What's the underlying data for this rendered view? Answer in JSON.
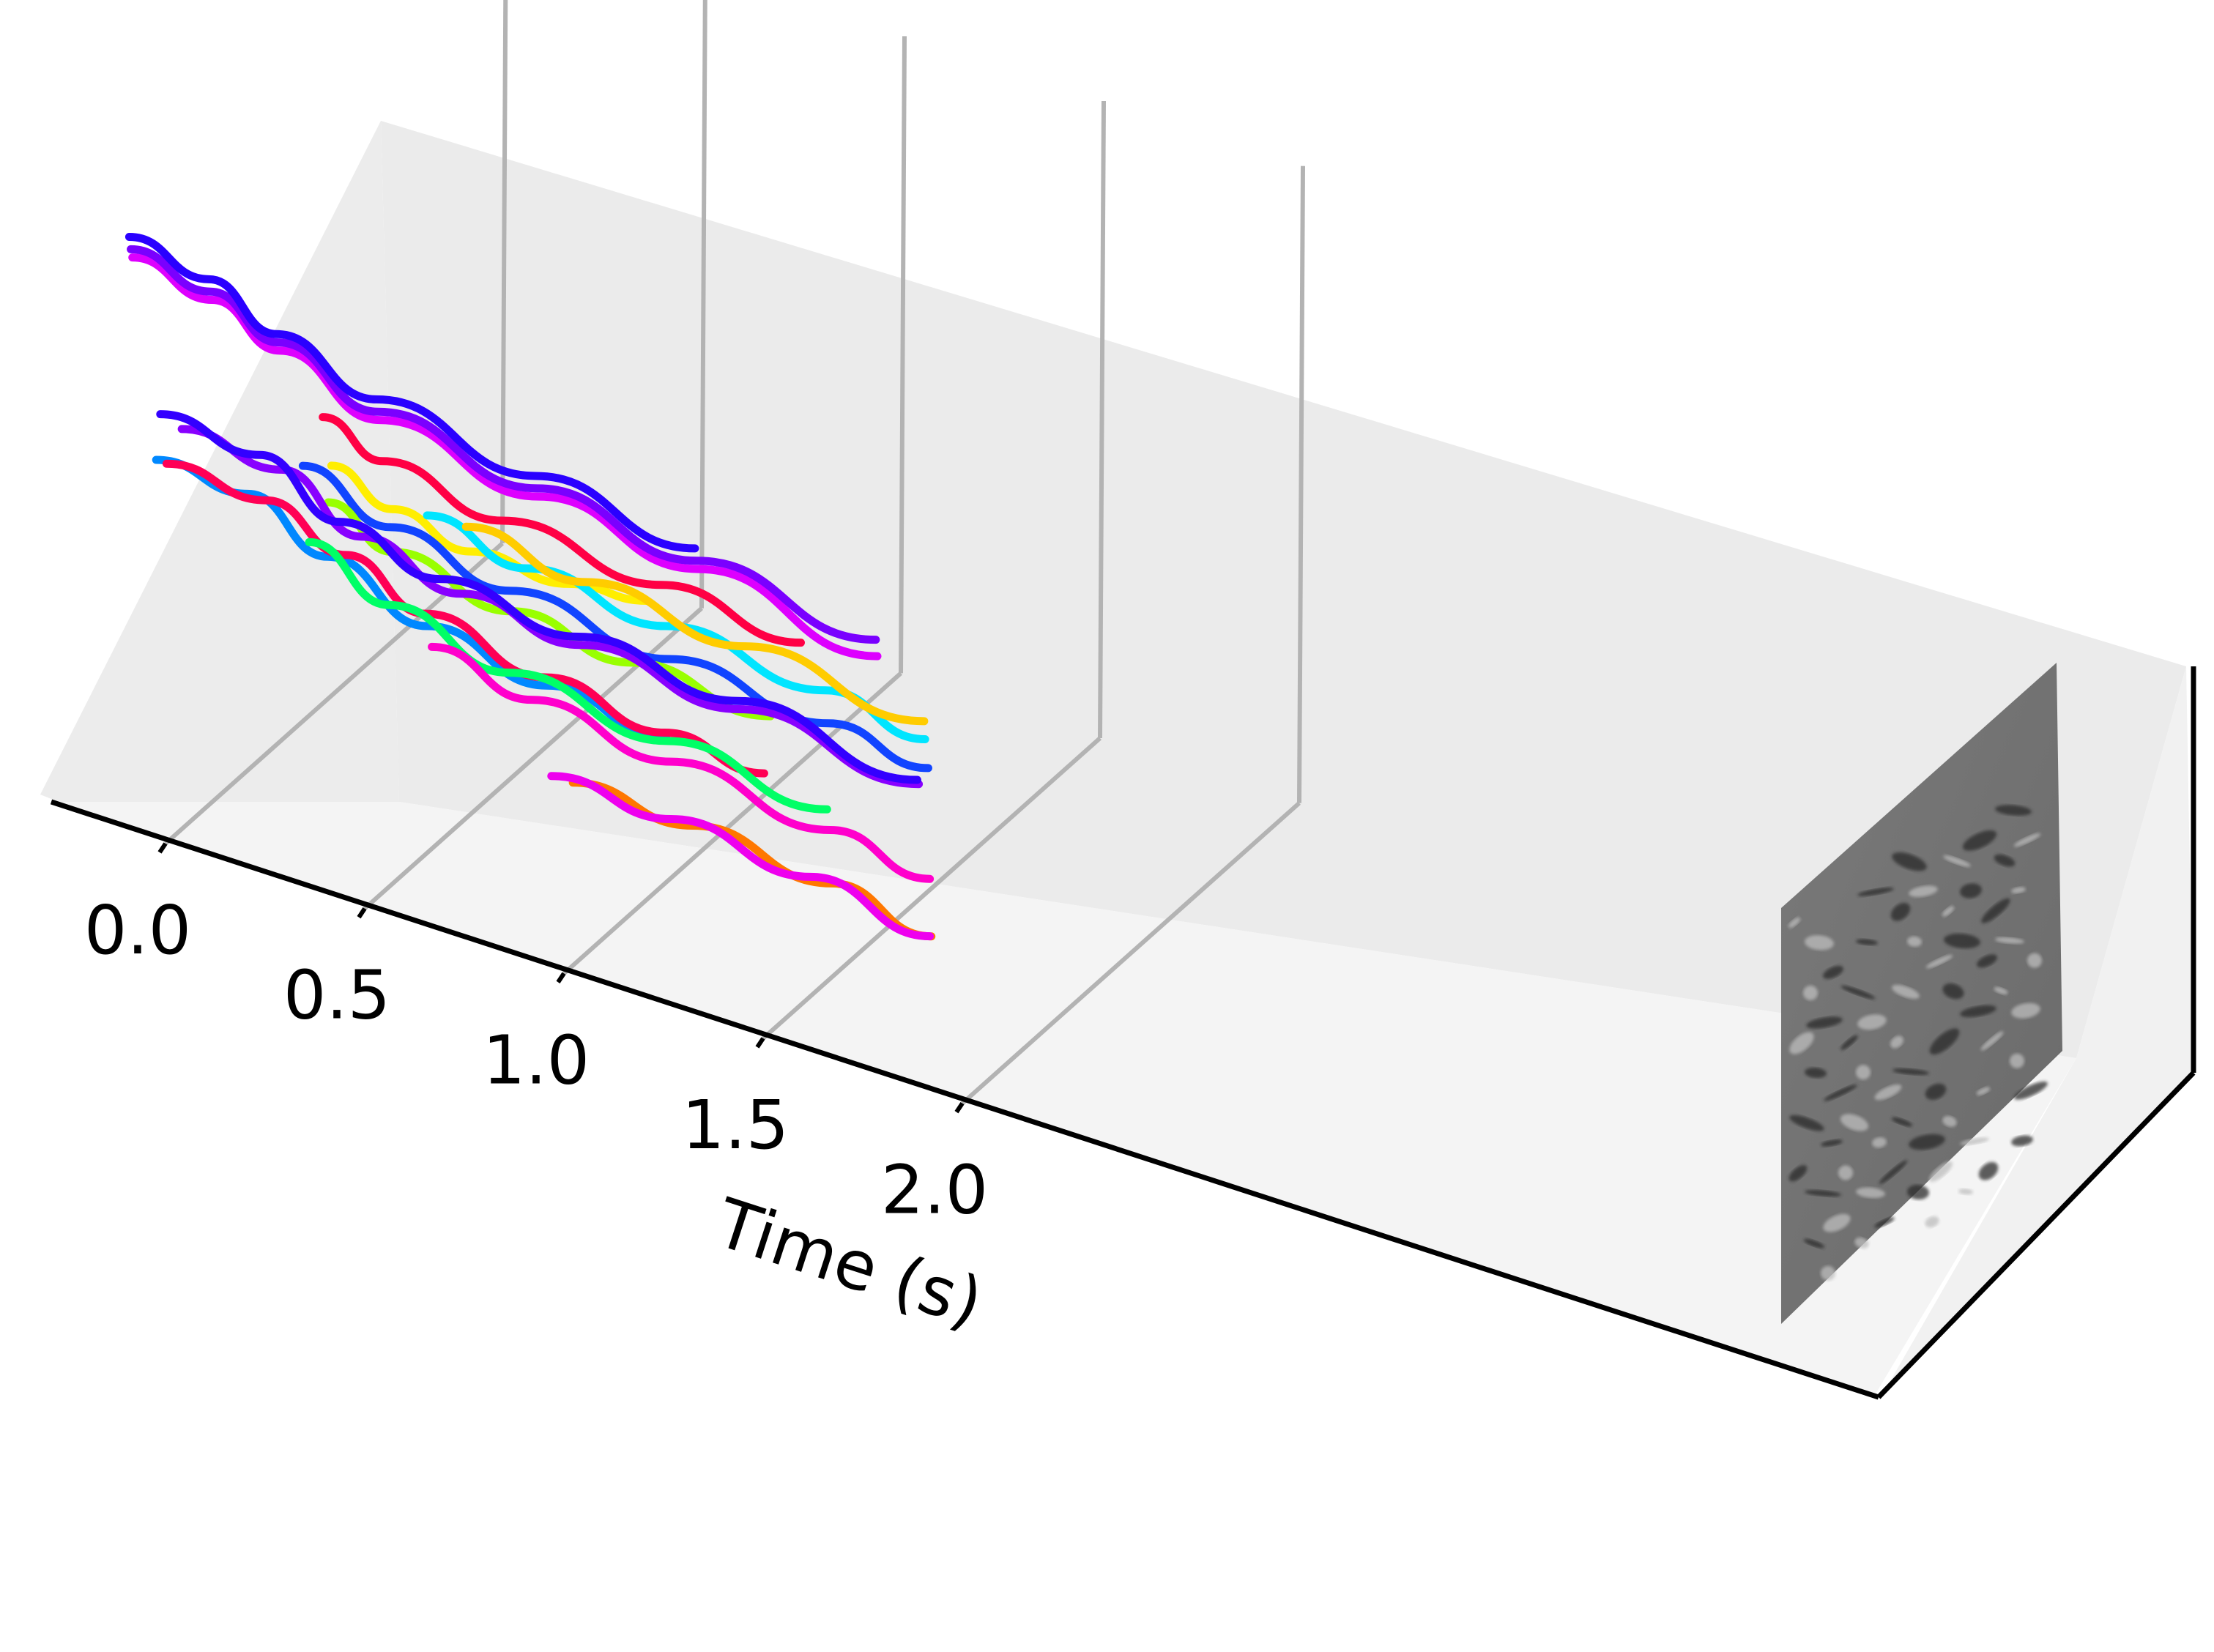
{
  "chart_data": {
    "type": "line",
    "projection": "3d",
    "xlabel": "Time (s)",
    "ylabel": "",
    "zlabel": "",
    "xlim": [
      -0.15,
      2.0
    ],
    "x_ticks": [
      0.0,
      0.5,
      1.0,
      1.5,
      2.0
    ],
    "x_tick_labels": [
      "0.0",
      "0.5",
      "1.0",
      "1.5",
      "2.0"
    ],
    "grid": true,
    "legend": "none",
    "end_frame": "grayscale event frame at t = 2.0",
    "series": [
      {
        "color": "#ffee00",
        "points": [
          [
            0.44,
            0.3,
            0.82
          ],
          [
            0.6,
            0.38,
            0.7
          ],
          [
            0.8,
            0.43,
            0.62
          ],
          [
            1.05,
            0.48,
            0.58
          ],
          [
            1.25,
            0.52,
            0.57
          ]
        ]
      },
      {
        "color": "#dd00ff",
        "points": [
          [
            -0.02,
            0.8,
            0.78
          ],
          [
            0.18,
            0.8,
            0.74
          ],
          [
            0.35,
            0.8,
            0.67
          ],
          [
            0.6,
            0.8,
            0.58
          ],
          [
            1.0,
            0.8,
            0.52
          ],
          [
            1.4,
            0.8,
            0.47
          ],
          [
            1.85,
            0.8,
            0.4
          ]
        ]
      },
      {
        "color": "#7a00ff",
        "points": [
          [
            -0.02,
            0.85,
            0.76
          ],
          [
            0.18,
            0.85,
            0.72
          ],
          [
            0.35,
            0.85,
            0.65
          ],
          [
            0.6,
            0.85,
            0.56
          ],
          [
            1.0,
            0.85,
            0.5
          ],
          [
            1.4,
            0.85,
            0.45
          ],
          [
            1.85,
            0.85,
            0.4
          ]
        ]
      },
      {
        "color": "#2a00ff",
        "points": [
          [
            -0.02,
            0.9,
            0.75
          ],
          [
            0.18,
            0.9,
            0.71
          ],
          [
            0.35,
            0.9,
            0.63
          ],
          [
            0.6,
            0.9,
            0.55
          ],
          [
            1.0,
            0.9,
            0.49
          ],
          [
            1.4,
            0.9,
            0.44
          ]
        ]
      },
      {
        "color": "#1144ff",
        "points": [
          [
            0.38,
            0.45,
            0.68
          ],
          [
            0.6,
            0.45,
            0.6
          ],
          [
            0.9,
            0.45,
            0.54
          ],
          [
            1.3,
            0.45,
            0.5
          ],
          [
            1.7,
            0.45,
            0.47
          ],
          [
            1.95,
            0.45,
            0.44
          ]
        ]
      },
      {
        "color": "#99ff00",
        "points": [
          [
            0.44,
            0.4,
            0.65
          ],
          [
            0.6,
            0.4,
            0.58
          ],
          [
            0.9,
            0.4,
            0.53
          ],
          [
            1.2,
            0.4,
            0.5
          ],
          [
            1.55,
            0.4,
            0.48
          ]
        ]
      },
      {
        "color": "#ff0044",
        "points": [
          [
            0.45,
            0.7,
            0.62
          ],
          [
            0.6,
            0.7,
            0.56
          ],
          [
            0.9,
            0.7,
            0.51
          ],
          [
            1.3,
            0.7,
            0.48
          ],
          [
            1.65,
            0.7,
            0.45
          ]
        ]
      },
      {
        "color": "#00e5ff",
        "points": [
          [
            0.7,
            0.55,
            0.58
          ],
          [
            0.95,
            0.55,
            0.53
          ],
          [
            1.3,
            0.55,
            0.5
          ],
          [
            1.7,
            0.55,
            0.47
          ],
          [
            1.95,
            0.55,
            0.43
          ]
        ]
      },
      {
        "color": "#ffcc00",
        "points": [
          [
            0.8,
            0.58,
            0.56
          ],
          [
            1.1,
            0.58,
            0.52
          ],
          [
            1.5,
            0.58,
            0.49
          ],
          [
            1.95,
            0.58,
            0.45
          ]
        ]
      },
      {
        "color": "#0088ff",
        "points": [
          [
            0.02,
            0.55,
            0.5
          ],
          [
            0.25,
            0.55,
            0.49
          ],
          [
            0.45,
            0.55,
            0.4
          ],
          [
            0.7,
            0.55,
            0.31
          ],
          [
            1.0,
            0.55,
            0.26
          ],
          [
            1.3,
            0.55,
            0.23
          ]
        ]
      },
      {
        "color": "#ff0055",
        "points": [
          [
            0.05,
            0.6,
            0.46
          ],
          [
            0.3,
            0.6,
            0.45
          ],
          [
            0.5,
            0.6,
            0.38
          ],
          [
            0.7,
            0.6,
            0.3
          ],
          [
            1.0,
            0.6,
            0.24
          ],
          [
            1.3,
            0.6,
            0.2
          ],
          [
            1.55,
            0.6,
            0.18
          ]
        ]
      },
      {
        "color": "#8800ff",
        "points": [
          [
            0.1,
            0.75,
            0.44
          ],
          [
            0.35,
            0.75,
            0.42
          ],
          [
            0.55,
            0.75,
            0.32
          ],
          [
            0.8,
            0.75,
            0.26
          ],
          [
            1.1,
            0.75,
            0.23
          ],
          [
            1.5,
            0.75,
            0.2
          ],
          [
            1.95,
            0.75,
            0.16
          ]
        ]
      },
      {
        "color": "#3300ff",
        "points": [
          [
            0.05,
            0.8,
            0.42
          ],
          [
            0.3,
            0.8,
            0.4
          ],
          [
            0.5,
            0.8,
            0.3
          ],
          [
            0.75,
            0.8,
            0.24
          ],
          [
            1.1,
            0.8,
            0.21
          ],
          [
            1.5,
            0.8,
            0.18
          ],
          [
            1.95,
            0.8,
            0.13
          ]
        ]
      },
      {
        "color": "#00ff66",
        "points": [
          [
            0.4,
            0.5,
            0.46
          ],
          [
            0.6,
            0.5,
            0.37
          ],
          [
            0.9,
            0.5,
            0.3
          ],
          [
            1.3,
            0.5,
            0.26
          ],
          [
            1.7,
            0.5,
            0.22
          ]
        ]
      },
      {
        "color": "#ff00cc",
        "points": [
          [
            0.7,
            0.4,
            0.38
          ],
          [
            0.95,
            0.4,
            0.33
          ],
          [
            1.3,
            0.4,
            0.29
          ],
          [
            1.7,
            0.4,
            0.25
          ],
          [
            1.95,
            0.4,
            0.21
          ]
        ]
      },
      {
        "color": "#ff7700",
        "points": [
          [
            1.05,
            0.35,
            0.2
          ],
          [
            1.35,
            0.35,
            0.19
          ],
          [
            1.7,
            0.35,
            0.16
          ],
          [
            1.95,
            0.35,
            0.11
          ]
        ]
      },
      {
        "color": "#ee00ee",
        "points": [
          [
            1.0,
            0.4,
            0.16
          ],
          [
            1.3,
            0.4,
            0.15
          ],
          [
            1.65,
            0.4,
            0.12
          ],
          [
            1.95,
            0.4,
            0.07
          ]
        ]
      }
    ]
  }
}
